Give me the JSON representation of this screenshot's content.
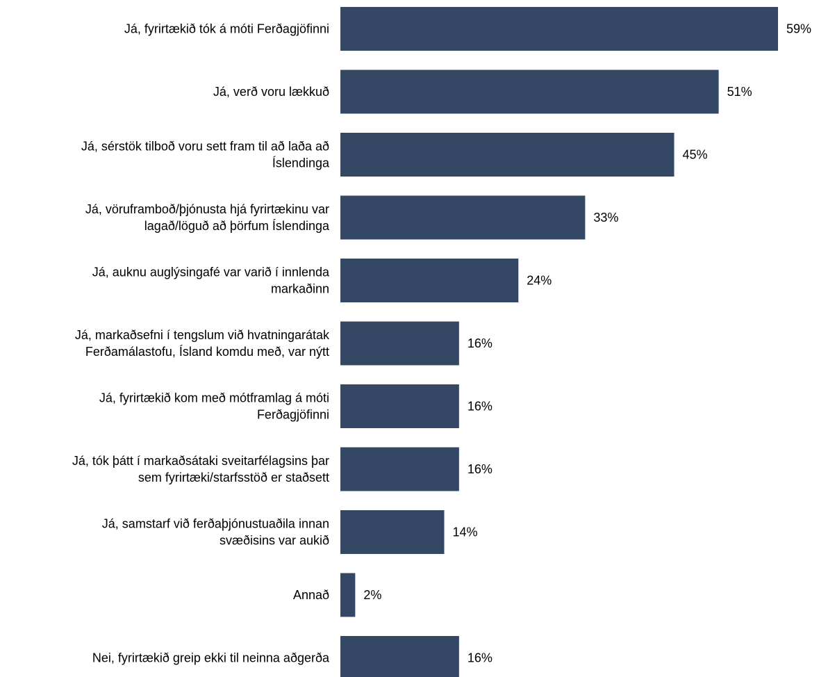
{
  "chart_data": {
    "type": "bar",
    "orientation": "horizontal",
    "categories": [
      [
        "Já, fyrirtækið tók á móti Ferðagjöfinni"
      ],
      [
        "Já, verð voru lækkuð"
      ],
      [
        "Já, sérstök tilboð voru sett fram til að laða að",
        "Íslendinga"
      ],
      [
        "Já, vöruframboð/þjónusta hjá fyrirtækinu var",
        "lagað/löguð að þörfum Íslendinga"
      ],
      [
        "Já, auknu auglýsingafé var varið í innlenda",
        "markaðinn"
      ],
      [
        "Já, markaðsefni í tengslum við hvatningarátak",
        "Ferðamálastofu, Ísland komdu með, var nýtt"
      ],
      [
        "Já, fyrirtækið kom með mótframlag á móti",
        "Ferðagjöfinni"
      ],
      [
        "Já, tók þátt í markaðsátaki sveitarfélagsins þar",
        "sem fyrirtæki/starfsstöð er staðsett"
      ],
      [
        "Já, samstarf við ferðaþjónustuaðila innan",
        "svæðisins var aukið"
      ],
      [
        "Annað"
      ],
      [
        "Nei, fyrirtækið greip ekki til neinna aðgerða"
      ]
    ],
    "values": [
      59,
      51,
      45,
      33,
      24,
      16,
      16,
      16,
      14,
      2,
      16
    ],
    "value_labels": [
      "59%",
      "51%",
      "45%",
      "33%",
      "24%",
      "16%",
      "16%",
      "16%",
      "14%",
      "2%",
      "16%"
    ],
    "unit": "%",
    "xlim": [
      0,
      59
    ],
    "grid": false,
    "legend": "none",
    "bar_color": "#344765"
  }
}
